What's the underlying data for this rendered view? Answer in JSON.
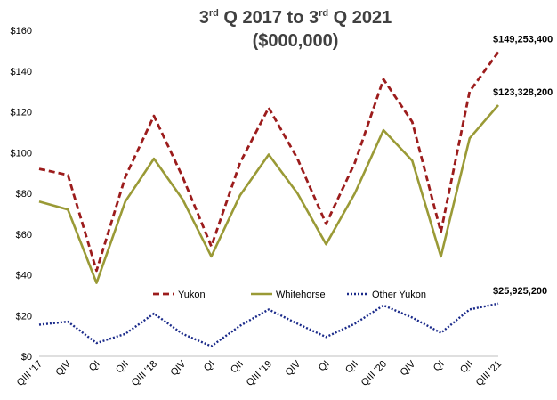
{
  "chart_data": {
    "type": "line",
    "title": {
      "l1_p1": "3",
      "l1_sup1": "rd",
      "l1_p2": " Q 2017 to 3",
      "l1_sup2": "rd",
      "l1_p3": " Q 2021",
      "line2": "($000,000)"
    },
    "xlabel": "",
    "ylabel": "",
    "ylim": [
      0,
      160
    ],
    "ytick_values": [
      0,
      20,
      40,
      60,
      80,
      100,
      120,
      140,
      160
    ],
    "ytick_labels": [
      "$0",
      "$20",
      "$40",
      "$60",
      "$80",
      "$100",
      "$120",
      "$140",
      "$160"
    ],
    "categories": [
      "QIII '17",
      "QIV",
      "QI",
      "QII",
      "QIII '18",
      "QIV",
      "QI",
      "QII",
      "QIII '19",
      "QIV",
      "QI",
      "QII",
      "QIII '20",
      "QIV",
      "QI",
      "QII",
      "QIII '21"
    ],
    "grid": false,
    "legend_position": "bottom-center",
    "series": [
      {
        "name": "Yukon",
        "color": "#9c1c1c",
        "style": "dashed",
        "values": [
          92,
          89,
          42,
          88,
          118,
          88,
          54,
          95,
          122,
          97,
          65,
          95,
          136,
          115,
          61,
          130,
          149.3
        ],
        "end_label": "$149,253,400"
      },
      {
        "name": "Whitehorse",
        "color": "#9a9a36",
        "style": "solid",
        "values": [
          76,
          72,
          36,
          76,
          97,
          77,
          49,
          79,
          99,
          80,
          55,
          80,
          111,
          96,
          49,
          107,
          123.3
        ],
        "end_label": "$123,328,200"
      },
      {
        "name": "Other Yukon",
        "color": "#1a2a8a",
        "style": "dotted",
        "values": [
          15.5,
          17,
          6.5,
          11,
          21,
          11,
          5,
          15,
          23,
          16,
          9.5,
          16,
          25,
          19,
          11.5,
          23,
          25.9
        ],
        "end_label": "$25,925,200"
      }
    ]
  }
}
